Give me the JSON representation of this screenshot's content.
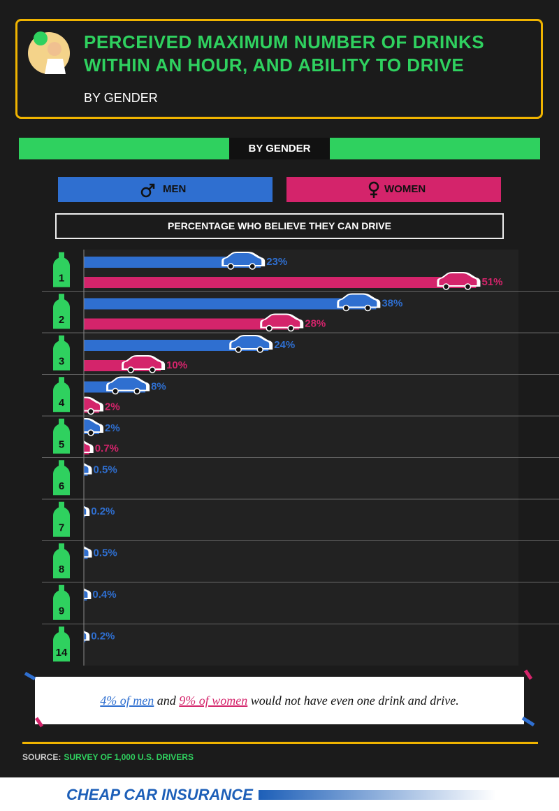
{
  "header": {
    "title": "PERCEIVED MAXIMUM NUMBER OF DRINKS WITHIN AN HOUR, AND ABILITY TO DRIVE",
    "subtitle": "BY GENDER"
  },
  "chart_data": {
    "type": "bar",
    "section_title": "BY GENDER",
    "x_label": "PERCENTAGE WHO BELIEVE THEY CAN DRIVE",
    "categories": [
      "1",
      "2",
      "3",
      "4",
      "5",
      "6",
      "7",
      "8",
      "9",
      "14"
    ],
    "series": [
      {
        "name": "MEN",
        "color": "#2f6fd0",
        "values": [
          23,
          38,
          24,
          8,
          2,
          0.5,
          0.2,
          0.5,
          0.4,
          0.2
        ],
        "value_labels": [
          "23%",
          "38%",
          "24%",
          "8%",
          "2%",
          "0.5%",
          "0.2%",
          "0.5%",
          "0.4%",
          "0.2%"
        ]
      },
      {
        "name": "WOMEN",
        "color": "#d4246b",
        "values": [
          51,
          28,
          10,
          2,
          0.7,
          null,
          null,
          null,
          null,
          null
        ],
        "value_labels": [
          "51%",
          "28%",
          "10%",
          "2%",
          "0.7%",
          null,
          null,
          null,
          null,
          null
        ]
      }
    ],
    "xlim": [
      0,
      56.5
    ]
  },
  "note": {
    "parts": [
      "4% of men",
      " and ",
      "9% of women",
      " would not have even one drink and drive."
    ]
  },
  "source": {
    "label": "SOURCE:",
    "text": "SURVEY OF 1,000 U.S. DRIVERS"
  },
  "footer": {
    "brand": "CHEAP CAR INSURANCE"
  }
}
